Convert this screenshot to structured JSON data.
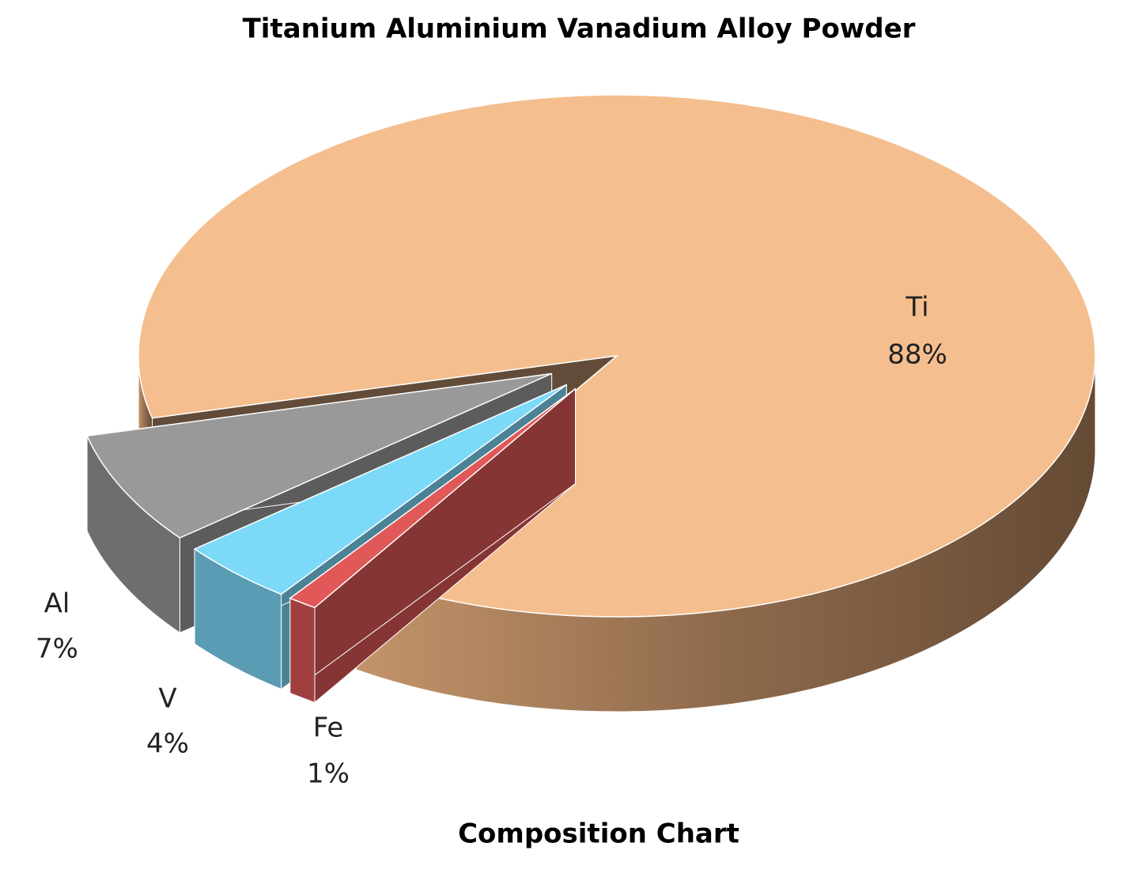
{
  "chart_data": {
    "type": "pie3d",
    "title": "Titanium Aluminium Vanadium Alloy Powder",
    "subtitle": "Composition Chart",
    "categories": [
      "Ti",
      "Al",
      "V",
      "Fe"
    ],
    "values": [
      88,
      7,
      4,
      1
    ],
    "value_labels": [
      "88%",
      "7%",
      "4%",
      "1%"
    ],
    "colors": [
      "#f5be8e",
      "#999999",
      "#7dd9f8",
      "#e05858"
    ]
  }
}
